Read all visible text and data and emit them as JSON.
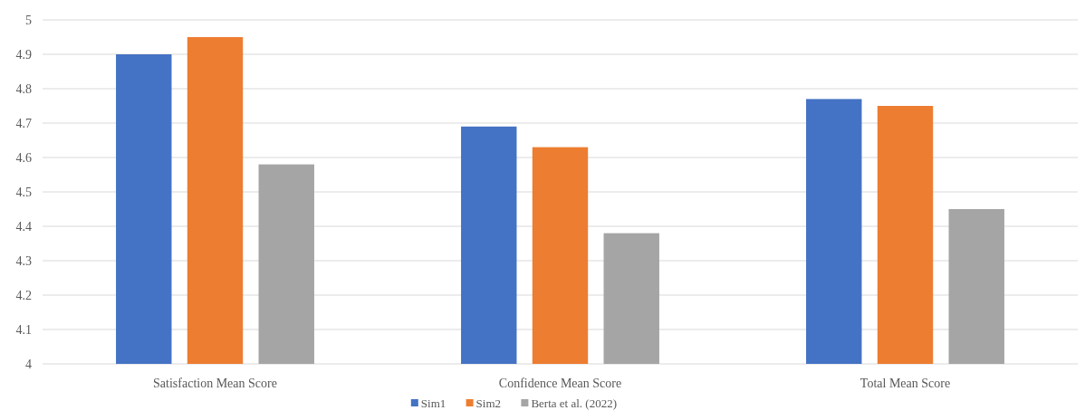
{
  "chart_data": {
    "type": "bar",
    "categories": [
      "Satisfaction Mean Score",
      "Confidence Mean Score",
      "Total Mean Score"
    ],
    "series": [
      {
        "name": "Sim1",
        "color": "#4472c4",
        "values": [
          4.9,
          4.69,
          4.77
        ]
      },
      {
        "name": "Sim2",
        "color": "#ed7d31",
        "values": [
          4.95,
          4.63,
          4.75
        ]
      },
      {
        "name": "Berta et al. (2022)",
        "color": "#a5a5a5",
        "values": [
          4.58,
          4.38,
          4.45
        ]
      }
    ],
    "ylim": [
      4,
      5
    ],
    "yticks": [
      4,
      4.1,
      4.2,
      4.3,
      4.4,
      4.5,
      4.6,
      4.7,
      4.8,
      4.9,
      5
    ],
    "grid": "y",
    "legend": "bottom"
  }
}
